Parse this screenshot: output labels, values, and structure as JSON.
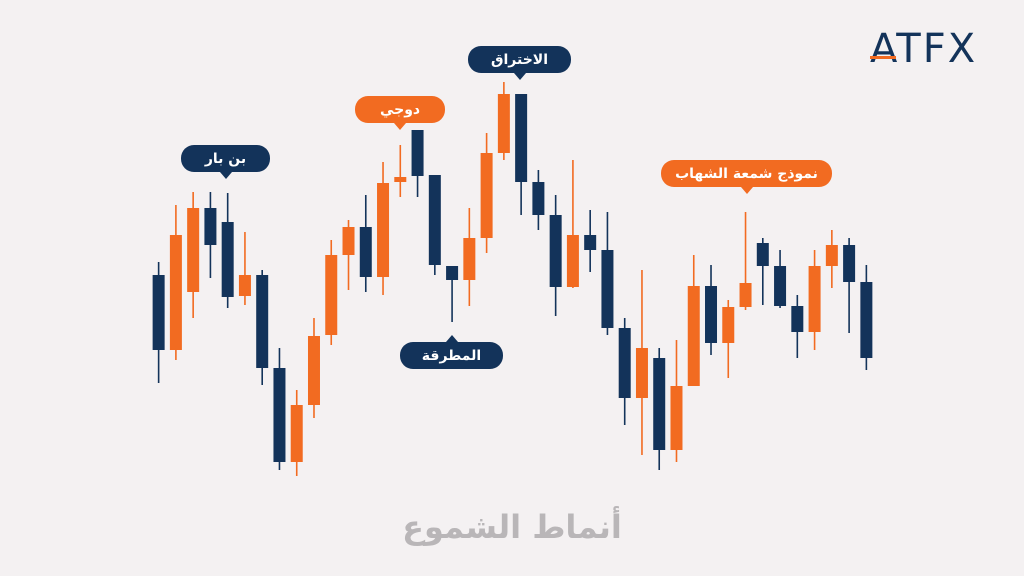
{
  "logo": "ATFX",
  "chart_data": {
    "type": "candlestick",
    "title": "أنماط الشموع",
    "annotations": [
      "بن بار",
      "دوجي",
      "الاختراق",
      "المطرقة",
      "نموذج شمعة الشهاب"
    ],
    "up_color": "#f26b21",
    "down_color": "#13335a",
    "ylim": [
      0,
      440
    ],
    "open": [
      225,
      150,
      208,
      292,
      278,
      204,
      225,
      132,
      38,
      95,
      165,
      245,
      273,
      223,
      318,
      370,
      325,
      234,
      220,
      262,
      347,
      406,
      318,
      285,
      213,
      265,
      250,
      172,
      102,
      142,
      50,
      114,
      214,
      157,
      193,
      257,
      234,
      194,
      168,
      234,
      255,
      218
    ],
    "high": [
      238,
      295,
      308,
      308,
      307,
      268,
      230,
      152,
      110,
      182,
      260,
      280,
      305,
      338,
      355,
      370,
      325,
      234,
      292,
      367,
      418,
      406,
      330,
      305,
      340,
      290,
      288,
      182,
      230,
      152,
      160,
      245,
      235,
      200,
      288,
      262,
      250,
      205,
      250,
      270,
      262,
      235
    ],
    "low": [
      117,
      140,
      182,
      222,
      192,
      195,
      115,
      30,
      24,
      82,
      155,
      210,
      208,
      205,
      303,
      303,
      225,
      178,
      194,
      247,
      340,
      285,
      270,
      184,
      212,
      228,
      165,
      75,
      45,
      30,
      38,
      114,
      145,
      122,
      190,
      195,
      192,
      142,
      150,
      212,
      167,
      130
    ],
    "close": [
      150,
      265,
      292,
      255,
      203,
      225,
      132,
      38,
      95,
      164,
      245,
      273,
      223,
      317,
      323,
      324,
      235,
      220,
      262,
      347,
      406,
      318,
      285,
      213,
      265,
      250,
      172,
      102,
      152,
      50,
      114,
      214,
      157,
      193,
      217,
      234,
      194,
      168,
      234,
      255,
      218,
      142
    ]
  }
}
